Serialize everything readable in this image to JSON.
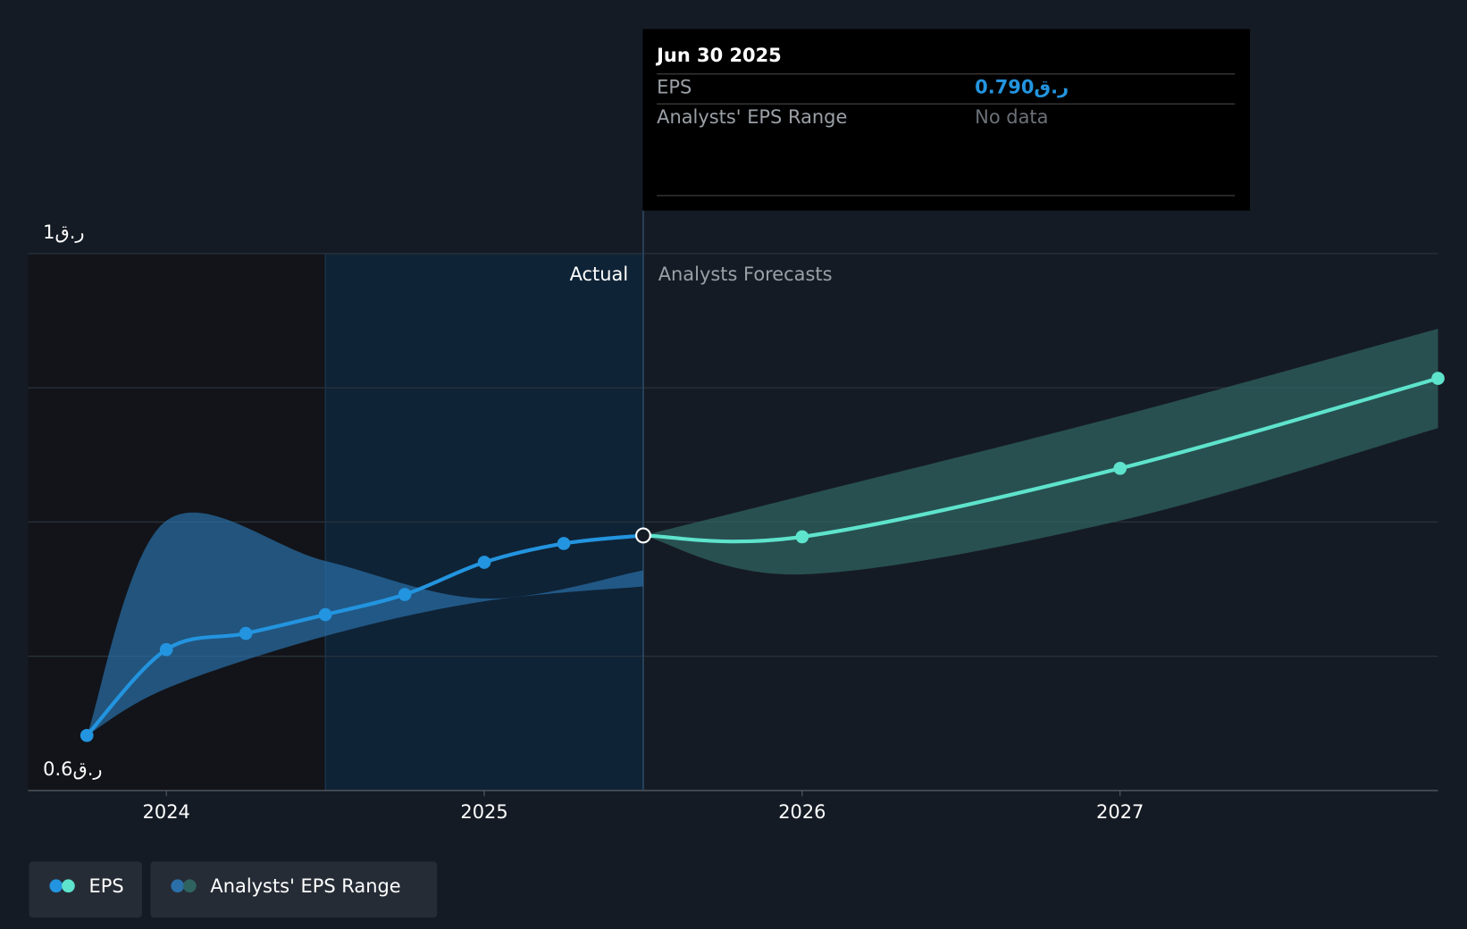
{
  "chart_data": {
    "type": "line",
    "xlim": [
      2023.565,
      2028.0
    ],
    "ylim": [
      0.6,
      1.0
    ],
    "xticks": [
      2024,
      2025,
      2026,
      2027
    ],
    "yticks": [
      {
        "value": 0.6,
        "label": "ر.ق0.6"
      },
      {
        "value": 1,
        "label": "ر.ق1"
      }
    ],
    "ygrid": [
      0.6,
      0.7,
      0.8,
      0.9,
      1.0
    ],
    "highlight_from": 2024.5,
    "divider_x": 2025.5,
    "actual_label": "Actual",
    "forecast_label": "Analysts Forecasts",
    "series": [
      {
        "name": "EPS",
        "color": "#2394df",
        "forecast_color": "#5ee3cc",
        "x": [
          2023.75,
          2024.0,
          2024.25,
          2024.5,
          2024.75,
          2025.0,
          2025.25,
          2025.5
        ],
        "values": [
          0.641,
          0.705,
          0.717,
          0.731,
          0.746,
          0.77,
          0.784,
          0.79
        ],
        "forecast_x": [
          2025.5,
          2026.0,
          2027.0,
          2028.0
        ],
        "forecast_values": [
          0.79,
          0.789,
          0.84,
          0.907
        ]
      },
      {
        "name": "Analysts' EPS Range",
        "color": "#2a6fa8",
        "forecast_color": "#2f6360",
        "x": [
          2023.75,
          2024.0,
          2024.5,
          2025.0,
          2025.5
        ],
        "low": [
          0.641,
          0.676,
          0.715,
          0.741,
          0.752
        ],
        "high": [
          0.641,
          0.801,
          0.771,
          0.743,
          0.764
        ],
        "forecast_x": [
          2025.5,
          2026.0,
          2027.0,
          2028.0
        ],
        "forecast_low": [
          0.79,
          0.761,
          0.801,
          0.87
        ],
        "forecast_high": [
          0.79,
          0.8195,
          0.879,
          0.944
        ]
      }
    ],
    "tooltip": {
      "title": "Jun 30 2025",
      "rows": [
        {
          "label": "EPS",
          "value": "ر.ق0.790"
        },
        {
          "label": "Analysts' EPS Range",
          "value": "No data"
        }
      ]
    }
  }
}
